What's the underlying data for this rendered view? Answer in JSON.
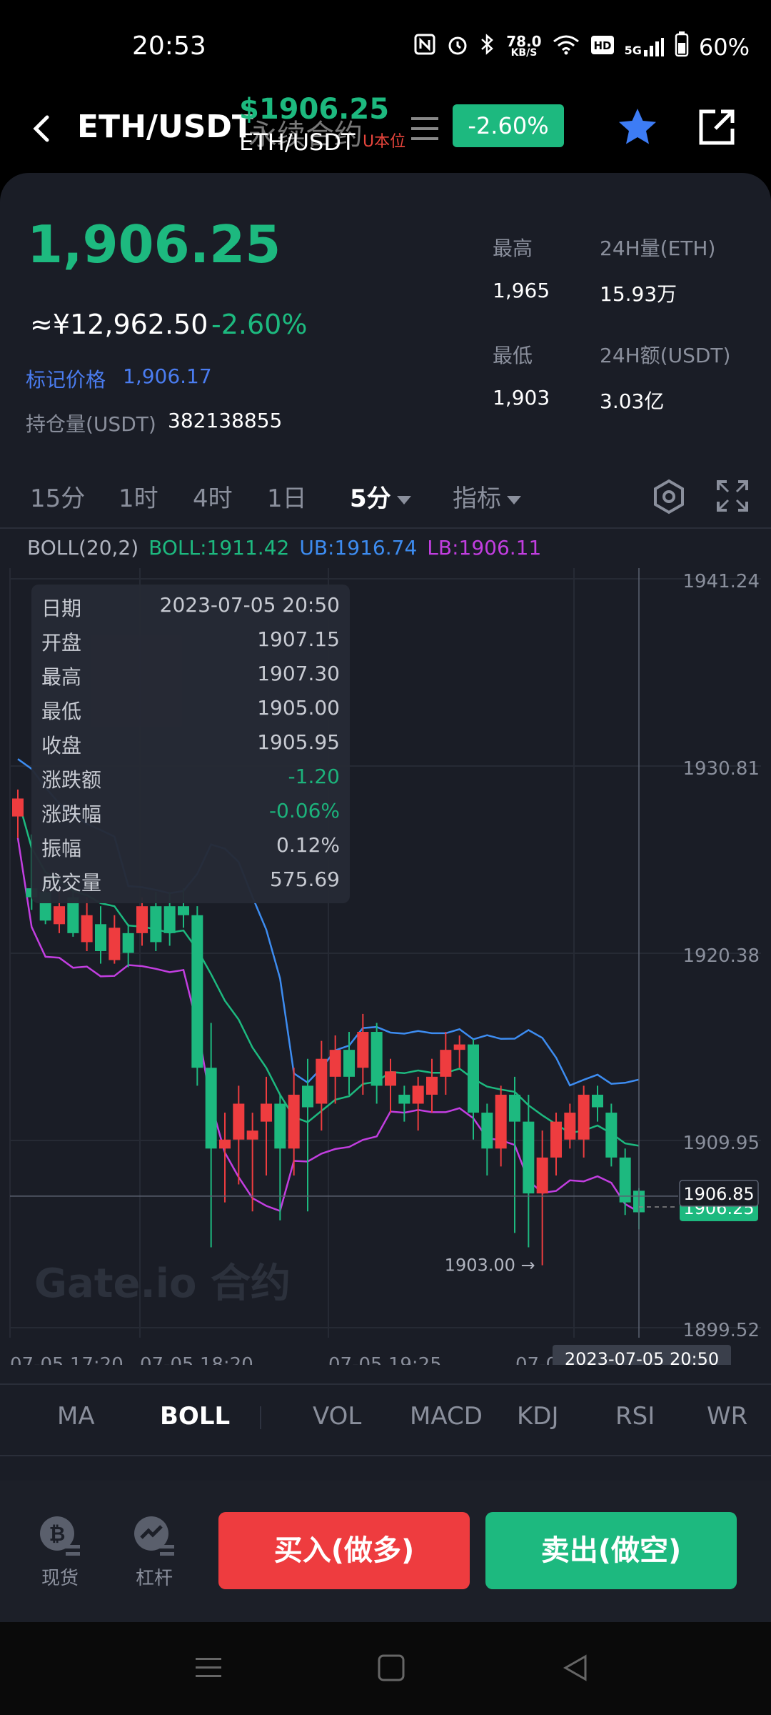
{
  "status": {
    "time": "20:53",
    "net_speed_value": "78.0",
    "net_speed_unit": "KB/S",
    "network": "5G",
    "battery": "60%"
  },
  "nav": {
    "pair": "ETH/USDT",
    "overlay_price": "$1906.25",
    "overlay_title": "永续合约",
    "overlay_pair": "ETH/USDT",
    "overlay_ubase": "U本位",
    "change": "-2.60%"
  },
  "ticker": {
    "price": "1,906.25",
    "cny": "≈¥12,962.50",
    "change": "-2.60%",
    "mark_label": "标记价格",
    "mark_value": "1,906.17",
    "position_label": "持仓量(USDT)",
    "position_value": "382138855"
  },
  "stats": {
    "high_label": "最高",
    "high_value": "1,965",
    "vol_label": "24H量(ETH)",
    "vol_value": "15.93万",
    "low_label": "最低",
    "low_value": "1,903",
    "amount_label": "24H额(USDT)",
    "amount_value": "3.03亿"
  },
  "timeframes": [
    "15分",
    "1时",
    "4时",
    "1日",
    "5分",
    "指标"
  ],
  "boll": {
    "name": "BOLL(20,2)",
    "mid": "BOLL:1911.42",
    "ub": "UB:1916.74",
    "lb": "LB:1906.11"
  },
  "tooltip": {
    "rows": [
      {
        "label": "日期",
        "value": "2023-07-05 20:50"
      },
      {
        "label": "开盘",
        "value": "1907.15"
      },
      {
        "label": "最高",
        "value": "1907.30"
      },
      {
        "label": "最低",
        "value": "1905.00"
      },
      {
        "label": "收盘",
        "value": "1905.95"
      },
      {
        "label": "涨跌额",
        "value": "-1.20"
      },
      {
        "label": "涨跌幅",
        "value": "-0.06%"
      },
      {
        "label": "振幅",
        "value": "0.12%"
      },
      {
        "label": "成交量",
        "value": "575.69"
      }
    ]
  },
  "chart_data": {
    "type": "candlestick",
    "y_ticks": [
      "1941.24",
      "1930.81",
      "1920.38",
      "1909.95",
      "1899.52"
    ],
    "ylim": [
      1899.52,
      1941.24
    ],
    "x_ticks": [
      "07-05 17:20",
      "07-05 18:20",
      "07-05 19:25",
      "07-0"
    ],
    "crosshair_time": "2023-07-05 20:50",
    "crosshair_price": "1906.85",
    "last_price_tag": "1906.25",
    "min_marker": "1903.00",
    "watermark": "Gate.io 合约",
    "candles": [
      {
        "o": 1928.0,
        "c": 1929.0,
        "h": 1929.5,
        "l": 1926.8
      },
      {
        "o": 1924.0,
        "c": 1923.5,
        "h": 1927.0,
        "l": 1922.8
      },
      {
        "o": 1923.8,
        "c": 1922.2,
        "h": 1924.5,
        "l": 1922.0
      },
      {
        "o": 1922.0,
        "c": 1923.0,
        "h": 1923.8,
        "l": 1921.5
      },
      {
        "o": 1923.5,
        "c": 1921.5,
        "h": 1924.0,
        "l": 1921.3
      },
      {
        "o": 1921.0,
        "c": 1922.5,
        "h": 1923.5,
        "l": 1920.5
      },
      {
        "o": 1922.0,
        "c": 1920.5,
        "h": 1923.0,
        "l": 1919.8
      },
      {
        "o": 1920.0,
        "c": 1921.8,
        "h": 1922.5,
        "l": 1919.8
      },
      {
        "o": 1921.5,
        "c": 1920.4,
        "h": 1922.0,
        "l": 1919.6
      },
      {
        "o": 1921.5,
        "c": 1923.0,
        "h": 1923.5,
        "l": 1920.8
      },
      {
        "o": 1923.0,
        "c": 1921.0,
        "h": 1923.8,
        "l": 1920.5
      },
      {
        "o": 1923.0,
        "c": 1921.5,
        "h": 1923.8,
        "l": 1920.8
      },
      {
        "o": 1923.0,
        "c": 1922.5,
        "h": 1924.0,
        "l": 1921.8
      },
      {
        "o": 1922.5,
        "c": 1914.0,
        "h": 1923.0,
        "l": 1913.0
      },
      {
        "o": 1914.0,
        "c": 1909.5,
        "h": 1916.5,
        "l": 1904.0
      },
      {
        "o": 1909.5,
        "c": 1910.0,
        "h": 1911.5,
        "l": 1906.5
      },
      {
        "o": 1910.0,
        "c": 1912.0,
        "h": 1913.0,
        "l": 1907.5
      },
      {
        "o": 1910.0,
        "c": 1910.5,
        "h": 1911.5,
        "l": 1906.0
      },
      {
        "o": 1911.0,
        "c": 1912.0,
        "h": 1913.5,
        "l": 1908.0
      },
      {
        "o": 1912.0,
        "c": 1909.5,
        "h": 1912.5,
        "l": 1905.5
      },
      {
        "o": 1909.5,
        "c": 1912.5,
        "h": 1914.0,
        "l": 1908.0
      },
      {
        "o": 1913.0,
        "c": 1911.8,
        "h": 1914.5,
        "l": 1906.0
      },
      {
        "o": 1912.0,
        "c": 1914.5,
        "h": 1915.5,
        "l": 1910.5
      },
      {
        "o": 1913.5,
        "c": 1915.0,
        "h": 1915.8,
        "l": 1912.0
      },
      {
        "o": 1915.0,
        "c": 1913.5,
        "h": 1916.0,
        "l": 1912.5
      },
      {
        "o": 1914.0,
        "c": 1916.0,
        "h": 1917.0,
        "l": 1912.5
      },
      {
        "o": 1916.0,
        "c": 1913.0,
        "h": 1916.5,
        "l": 1912.0
      },
      {
        "o": 1913.0,
        "c": 1913.8,
        "h": 1914.5,
        "l": 1911.5
      },
      {
        "o": 1912.5,
        "c": 1912.0,
        "h": 1913.0,
        "l": 1911.0
      },
      {
        "o": 1912.0,
        "c": 1913.0,
        "h": 1913.5,
        "l": 1910.5
      },
      {
        "o": 1912.5,
        "c": 1913.5,
        "h": 1914.5,
        "l": 1911.5
      },
      {
        "o": 1913.5,
        "c": 1915.0,
        "h": 1916.0,
        "l": 1912.5
      },
      {
        "o": 1915.0,
        "c": 1915.3,
        "h": 1915.8,
        "l": 1914.0
      },
      {
        "o": 1915.3,
        "c": 1911.5,
        "h": 1915.6,
        "l": 1910.0
      },
      {
        "o": 1911.5,
        "c": 1909.5,
        "h": 1912.0,
        "l": 1908.0
      },
      {
        "o": 1909.5,
        "c": 1912.5,
        "h": 1913.0,
        "l": 1908.5
      },
      {
        "o": 1912.5,
        "c": 1911.0,
        "h": 1913.5,
        "l": 1904.8
      },
      {
        "o": 1911.0,
        "c": 1907.0,
        "h": 1912.5,
        "l": 1904.0
      },
      {
        "o": 1907.0,
        "c": 1909.0,
        "h": 1910.5,
        "l": 1903.0
      },
      {
        "o": 1909.0,
        "c": 1911.0,
        "h": 1911.5,
        "l": 1908.0
      },
      {
        "o": 1910.0,
        "c": 1911.5,
        "h": 1912.0,
        "l": 1909.5
      },
      {
        "o": 1910.0,
        "c": 1912.5,
        "h": 1913.0,
        "l": 1909.0
      },
      {
        "o": 1912.5,
        "c": 1911.8,
        "h": 1913.0,
        "l": 1911.0
      },
      {
        "o": 1911.5,
        "c": 1909.0,
        "h": 1912.0,
        "l": 1908.5
      },
      {
        "o": 1909.0,
        "c": 1906.5,
        "h": 1909.5,
        "l": 1905.8
      },
      {
        "o": 1907.15,
        "c": 1905.95,
        "h": 1907.3,
        "l": 1905.0
      }
    ]
  },
  "indicator_tabs": [
    "MA",
    "BOLL",
    "VOL",
    "MACD",
    "KDJ",
    "RSI",
    "WR"
  ],
  "bottom": {
    "spot_label": "现货",
    "margin_label": "杠杆",
    "buy_label": "买入(做多)",
    "sell_label": "卖出(做空)"
  },
  "colors": {
    "up": "#ee3c3f",
    "down": "#1db97f",
    "boll_mid": "#1db97f",
    "boll_ub": "#3d8cf0",
    "boll_lb": "#c23ee0"
  }
}
